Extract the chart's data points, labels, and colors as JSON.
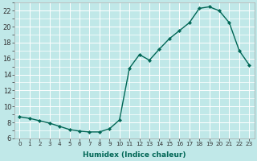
{
  "xlabel": "Humidex (Indice chaleur)",
  "bg_color": "#c0e8e8",
  "grid_color": "#ffffff",
  "line_color": "#006655",
  "marker_color": "#006655",
  "x_values": [
    0,
    1,
    2,
    3,
    4,
    5,
    6,
    7,
    8,
    9,
    10,
    11,
    12,
    13,
    14,
    15,
    16,
    17,
    18,
    19,
    20,
    21,
    22,
    23
  ],
  "y_values": [
    8.7,
    8.5,
    8.2,
    7.9,
    7.5,
    7.1,
    6.9,
    6.8,
    6.8,
    7.2,
    8.3,
    14.8,
    16.5,
    15.8,
    17.2,
    18.5,
    19.5,
    20.5,
    22.3,
    22.5,
    22.0,
    20.5,
    17.0,
    15.2
  ],
  "ylim_min": 6,
  "ylim_max": 23,
  "xlim_min": -0.5,
  "xlim_max": 23.5,
  "yticks": [
    6,
    8,
    10,
    12,
    14,
    16,
    18,
    20,
    22
  ],
  "xticks": [
    0,
    1,
    2,
    3,
    4,
    5,
    6,
    7,
    8,
    9,
    10,
    11,
    12,
    13,
    14,
    15,
    16,
    17,
    18,
    19,
    20,
    21,
    22,
    23
  ],
  "xlabel_fontsize": 6.5,
  "tick_fontsize_x": 5.2,
  "tick_fontsize_y": 6.0,
  "linewidth": 1.0,
  "markersize": 2.2
}
